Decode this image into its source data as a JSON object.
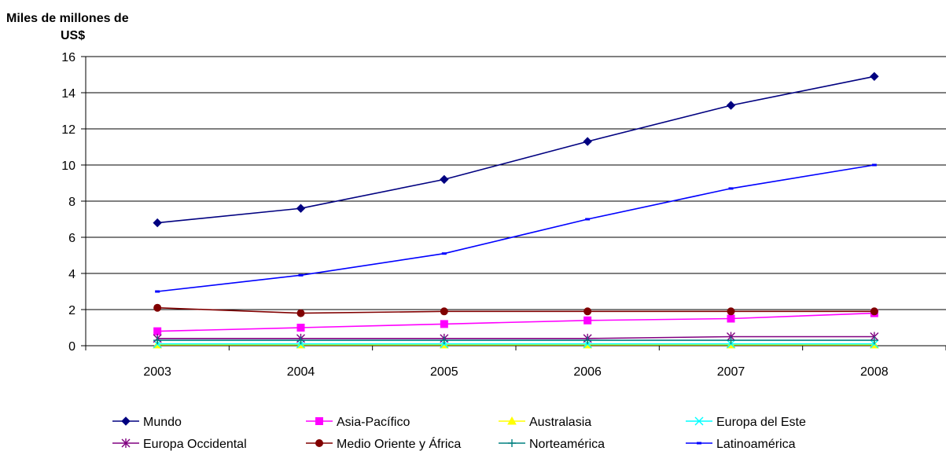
{
  "chart_data": {
    "type": "line",
    "title": "",
    "ylabel": "Miles de millones de US$",
    "xlabel": "",
    "categories": [
      "2003",
      "2004",
      "2005",
      "2006",
      "2007",
      "2008"
    ],
    "ylim": [
      0,
      16
    ],
    "yticks": [
      "0",
      "2",
      "4",
      "6",
      "8",
      "10",
      "12",
      "14",
      "16"
    ],
    "grid": "horizontal",
    "legend_position": "bottom",
    "series": [
      {
        "name": "Mundo",
        "color": "#000080",
        "marker": "diamond",
        "values": [
          6.8,
          7.6,
          9.2,
          11.3,
          13.3,
          14.9
        ]
      },
      {
        "name": "Asia-Pacífico",
        "color": "#ff00ff",
        "marker": "square",
        "values": [
          0.8,
          1.0,
          1.2,
          1.4,
          1.5,
          1.8
        ]
      },
      {
        "name": "Australasia",
        "color": "#ffff00",
        "marker": "triangle",
        "values": [
          0.05,
          0.05,
          0.05,
          0.05,
          0.05,
          0.05
        ]
      },
      {
        "name": "Europa del Este",
        "color": "#00ffff",
        "marker": "x",
        "values": [
          0.1,
          0.1,
          0.1,
          0.1,
          0.1,
          0.1
        ]
      },
      {
        "name": "Europa Occidental",
        "color": "#800080",
        "marker": "star",
        "values": [
          0.4,
          0.4,
          0.4,
          0.4,
          0.5,
          0.5
        ]
      },
      {
        "name": "Medio Oriente y África",
        "color": "#800000",
        "marker": "circle",
        "values": [
          2.1,
          1.8,
          1.9,
          1.9,
          1.9,
          1.9
        ]
      },
      {
        "name": "Norteamérica",
        "color": "#008080",
        "marker": "plus",
        "values": [
          0.3,
          0.3,
          0.3,
          0.3,
          0.3,
          0.3
        ]
      },
      {
        "name": "Latinoamérica",
        "color": "#0000ff",
        "marker": "dash",
        "values": [
          3.0,
          3.9,
          5.1,
          7.0,
          8.7,
          10.0
        ]
      }
    ]
  }
}
